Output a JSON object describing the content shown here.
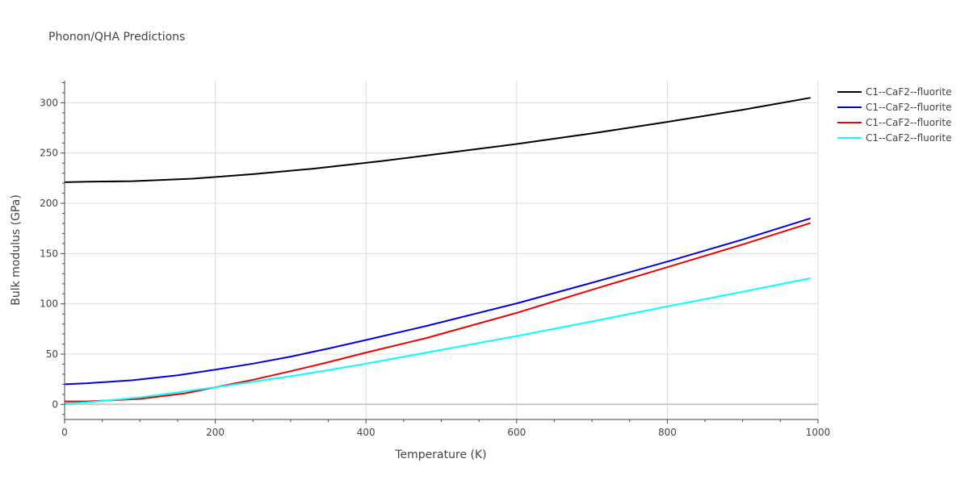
{
  "chart_data": {
    "type": "line",
    "title": "Phonon/QHA Predictions",
    "xlabel": "Temperature (K)",
    "ylabel": "Bulk modulus (GPa)",
    "xlim": [
      0,
      1000
    ],
    "ylim": [
      -15,
      322
    ],
    "xticks": [
      0,
      200,
      400,
      600,
      800,
      1000
    ],
    "yticks": [
      0,
      50,
      100,
      150,
      200,
      250,
      300
    ],
    "grid": true,
    "legend_position": "top-right",
    "series": [
      {
        "name": "C1--CaF2--fluorite",
        "color": "#000000",
        "x": [
          0,
          30,
          90,
          170,
          250,
          330,
          420,
          500,
          600,
          700,
          800,
          900,
          990
        ],
        "y": [
          221,
          221.5,
          222,
          224.5,
          229,
          234.5,
          242,
          249.5,
          259,
          269.5,
          281,
          293,
          305
        ]
      },
      {
        "name": "C1--CaF2--fluorite",
        "color": "#0000dd",
        "x": [
          0,
          30,
          90,
          150,
          200,
          250,
          300,
          350,
          400,
          480,
          600,
          700,
          800,
          900,
          990
        ],
        "y": [
          20,
          21,
          24,
          29,
          34.5,
          40.5,
          47.5,
          55.5,
          64,
          78,
          100.5,
          121,
          142,
          164,
          185
        ]
      },
      {
        "name": "C1--CaF2--fluorite",
        "color": "#ee0000",
        "x": [
          0,
          30,
          100,
          160,
          200,
          250,
          300,
          350,
          400,
          480,
          600,
          700,
          800,
          900,
          990
        ],
        "y": [
          3,
          3,
          5.5,
          11,
          17,
          24.5,
          33,
          42,
          51.5,
          66,
          91,
          114,
          136.5,
          159,
          180.5
        ]
      },
      {
        "name": "C1--CaF2--fluorite",
        "color": "#00ffff",
        "x": [
          0,
          30,
          100,
          160,
          200,
          250,
          300,
          350,
          400,
          480,
          600,
          700,
          800,
          900,
          990
        ],
        "y": [
          1,
          2,
          7,
          13,
          17,
          22.5,
          28,
          34,
          40.5,
          51.5,
          68,
          82.5,
          97.5,
          112,
          125.5
        ]
      }
    ]
  }
}
